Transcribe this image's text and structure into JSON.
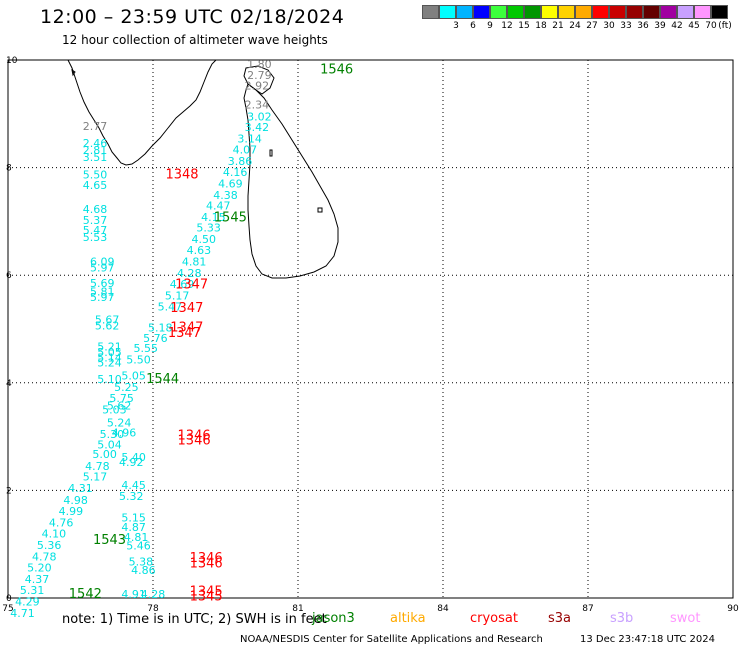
{
  "header": {
    "title": "12:00 – 23:59 UTC 02/18/2024",
    "subtitle": "12 hour collection of altimeter wave heights"
  },
  "colorbar": {
    "unit": "(ft)",
    "bins": [
      {
        "label": "",
        "color": "#808080"
      },
      {
        "label": "3",
        "color": "#00ffff"
      },
      {
        "label": "6",
        "color": "#00b4ff"
      },
      {
        "label": "9",
        "color": "#0000ff"
      },
      {
        "label": "12",
        "color": "#3cff3c"
      },
      {
        "label": "15",
        "color": "#00c800"
      },
      {
        "label": "18",
        "color": "#009600"
      },
      {
        "label": "21",
        "color": "#ffff00"
      },
      {
        "label": "24",
        "color": "#ffd200"
      },
      {
        "label": "27",
        "color": "#ffaa00"
      },
      {
        "label": "30",
        "color": "#ff0000"
      },
      {
        "label": "33",
        "color": "#c80000"
      },
      {
        "label": "36",
        "color": "#960000"
      },
      {
        "label": "39",
        "color": "#640000"
      },
      {
        "label": "42",
        "color": "#a000a0"
      },
      {
        "label": "45",
        "color": "#c8a0ff"
      },
      {
        "label": "70",
        "color": "#ff96ff"
      },
      {
        "label": "",
        "color": "#000000"
      }
    ]
  },
  "map": {
    "lon_range": [
      75,
      90
    ],
    "lat_range": [
      0,
      10
    ],
    "lon_ticks": [
      "75",
      "78",
      "81",
      "84",
      "87",
      "90"
    ],
    "lat_ticks": [
      "0",
      "2",
      "4",
      "6",
      "8",
      "10"
    ],
    "colors": {
      "gray": "#808080",
      "cyan": "#00e0e0",
      "red": "#ff0000",
      "green": "#008000"
    },
    "wave_labels": [
      {
        "lon": 80.2,
        "lat": 9.85,
        "text": "1.80",
        "c": "gray"
      },
      {
        "lon": 80.2,
        "lat": 9.65,
        "text": "2.79",
        "c": "gray"
      },
      {
        "lon": 80.15,
        "lat": 9.45,
        "text": "2.92",
        "c": "gray"
      },
      {
        "lon": 76.8,
        "lat": 8.7,
        "text": "2.77",
        "c": "gray"
      },
      {
        "lon": 80.15,
        "lat": 9.1,
        "text": "2.34",
        "c": "gray"
      },
      {
        "lon": 80.2,
        "lat": 8.88,
        "text": "3.02",
        "c": "cyan"
      },
      {
        "lon": 80.15,
        "lat": 8.68,
        "text": "3.42",
        "c": "cyan"
      },
      {
        "lon": 80.0,
        "lat": 8.47,
        "text": "3.14",
        "c": "cyan"
      },
      {
        "lon": 79.9,
        "lat": 8.26,
        "text": "4.07",
        "c": "cyan"
      },
      {
        "lon": 79.8,
        "lat": 8.05,
        "text": "3.86",
        "c": "cyan"
      },
      {
        "lon": 79.7,
        "lat": 7.84,
        "text": "4.16",
        "c": "cyan"
      },
      {
        "lon": 79.6,
        "lat": 7.63,
        "text": "4.69",
        "c": "cyan"
      },
      {
        "lon": 79.5,
        "lat": 7.42,
        "text": "4.38",
        "c": "cyan"
      },
      {
        "lon": 79.35,
        "lat": 7.22,
        "text": "4.47",
        "c": "cyan"
      },
      {
        "lon": 79.25,
        "lat": 7.01,
        "text": "4.15",
        "c": "cyan"
      },
      {
        "lon": 79.15,
        "lat": 6.81,
        "text": "5.33",
        "c": "cyan"
      },
      {
        "lon": 79.05,
        "lat": 6.6,
        "text": "4.50",
        "c": "cyan"
      },
      {
        "lon": 78.95,
        "lat": 6.39,
        "text": "4.63",
        "c": "cyan"
      },
      {
        "lon": 78.85,
        "lat": 6.18,
        "text": "4.81",
        "c": "cyan"
      },
      {
        "lon": 78.75,
        "lat": 5.97,
        "text": "4.28",
        "c": "cyan"
      },
      {
        "lon": 78.6,
        "lat": 5.76,
        "text": "4.69",
        "c": "cyan"
      },
      {
        "lon": 78.5,
        "lat": 5.55,
        "text": "5.17",
        "c": "cyan"
      },
      {
        "lon": 78.35,
        "lat": 5.34,
        "text": "5.47",
        "c": "cyan"
      },
      {
        "lon": 78.15,
        "lat": 4.95,
        "text": "5.18",
        "c": "cyan"
      },
      {
        "lon": 78.05,
        "lat": 4.76,
        "text": "5.76",
        "c": "cyan"
      },
      {
        "lon": 77.85,
        "lat": 4.57,
        "text": "5.55",
        "c": "cyan"
      },
      {
        "lon": 77.7,
        "lat": 4.36,
        "text": "5.50",
        "c": "cyan"
      },
      {
        "lon": 77.6,
        "lat": 4.06,
        "text": "5.05",
        "c": "cyan"
      },
      {
        "lon": 77.45,
        "lat": 3.85,
        "text": "5.25",
        "c": "cyan"
      },
      {
        "lon": 77.35,
        "lat": 3.64,
        "text": "5.75",
        "c": "cyan"
      },
      {
        "lon": 77.2,
        "lat": 3.43,
        "text": "5.03",
        "c": "cyan"
      },
      {
        "lon": 77.3,
        "lat": 3.19,
        "text": "5.24",
        "c": "cyan"
      },
      {
        "lon": 77.4,
        "lat": 3.0,
        "text": "4.96",
        "c": "cyan"
      },
      {
        "lon": 77.6,
        "lat": 2.55,
        "text": "5.40",
        "c": "cyan"
      },
      {
        "lon": 77.55,
        "lat": 2.45,
        "text": "4.92",
        "c": "cyan"
      },
      {
        "lon": 77.6,
        "lat": 2.03,
        "text": "4.45",
        "c": "cyan"
      },
      {
        "lon": 77.55,
        "lat": 1.82,
        "text": "5.32",
        "c": "cyan"
      },
      {
        "lon": 77.6,
        "lat": 1.42,
        "text": "5.15",
        "c": "cyan"
      },
      {
        "lon": 77.6,
        "lat": 1.25,
        "text": "4.87",
        "c": "cyan"
      },
      {
        "lon": 77.65,
        "lat": 1.06,
        "text": "4.81",
        "c": "cyan"
      },
      {
        "lon": 77.7,
        "lat": 0.9,
        "text": "5.46",
        "c": "cyan"
      },
      {
        "lon": 77.75,
        "lat": 0.6,
        "text": "5.38",
        "c": "cyan"
      },
      {
        "lon": 77.8,
        "lat": 0.45,
        "text": "4.86",
        "c": "cyan"
      },
      {
        "lon": 77.6,
        "lat": 0.0,
        "text": "4.91",
        "c": "cyan"
      },
      {
        "lon": 78.0,
        "lat": 0.0,
        "text": "4.28",
        "c": "cyan"
      },
      {
        "lon": 76.8,
        "lat": 8.38,
        "text": "2.46",
        "c": "cyan"
      },
      {
        "lon": 76.8,
        "lat": 8.25,
        "text": "2.81",
        "c": "cyan"
      },
      {
        "lon": 76.8,
        "lat": 8.12,
        "text": "3.51",
        "c": "cyan"
      },
      {
        "lon": 76.8,
        "lat": 7.8,
        "text": "5.50",
        "c": "cyan"
      },
      {
        "lon": 76.8,
        "lat": 7.6,
        "text": "4.65",
        "c": "cyan"
      },
      {
        "lon": 76.8,
        "lat": 7.16,
        "text": "4.68",
        "c": "cyan"
      },
      {
        "lon": 76.8,
        "lat": 6.95,
        "text": "5.37",
        "c": "cyan"
      },
      {
        "lon": 76.8,
        "lat": 6.77,
        "text": "5.47",
        "c": "cyan"
      },
      {
        "lon": 76.8,
        "lat": 6.64,
        "text": "5.53",
        "c": "cyan"
      },
      {
        "lon": 76.95,
        "lat": 6.18,
        "text": "6.09",
        "c": "cyan"
      },
      {
        "lon": 76.95,
        "lat": 6.07,
        "text": "5.97",
        "c": "cyan"
      },
      {
        "lon": 76.95,
        "lat": 5.78,
        "text": "5.69",
        "c": "cyan"
      },
      {
        "lon": 76.95,
        "lat": 5.62,
        "text": "5.81",
        "c": "cyan"
      },
      {
        "lon": 76.95,
        "lat": 5.52,
        "text": "5.97",
        "c": "cyan"
      },
      {
        "lon": 77.05,
        "lat": 5.1,
        "text": "5.67",
        "c": "cyan"
      },
      {
        "lon": 77.05,
        "lat": 4.99,
        "text": "5.62",
        "c": "cyan"
      },
      {
        "lon": 77.1,
        "lat": 4.6,
        "text": "5.21",
        "c": "cyan"
      },
      {
        "lon": 77.1,
        "lat": 4.5,
        "text": "5.05",
        "c": "cyan"
      },
      {
        "lon": 77.1,
        "lat": 4.4,
        "text": "5.14",
        "c": "cyan"
      },
      {
        "lon": 77.1,
        "lat": 4.3,
        "text": "5.24",
        "c": "cyan"
      },
      {
        "lon": 77.1,
        "lat": 4.0,
        "text": "5.10",
        "c": "cyan"
      },
      {
        "lon": 77.3,
        "lat": 3.5,
        "text": "5.62",
        "c": "cyan"
      },
      {
        "lon": 77.15,
        "lat": 2.97,
        "text": "5.30",
        "c": "cyan"
      },
      {
        "lon": 77.1,
        "lat": 2.78,
        "text": "5.04",
        "c": "cyan"
      },
      {
        "lon": 77.0,
        "lat": 2.6,
        "text": "5.00",
        "c": "cyan"
      },
      {
        "lon": 76.85,
        "lat": 2.38,
        "text": "4.78",
        "c": "cyan"
      },
      {
        "lon": 76.8,
        "lat": 2.18,
        "text": "5.17",
        "c": "cyan"
      },
      {
        "lon": 76.5,
        "lat": 1.97,
        "text": "4.31",
        "c": "cyan"
      },
      {
        "lon": 76.4,
        "lat": 1.75,
        "text": "4.98",
        "c": "cyan"
      },
      {
        "lon": 76.3,
        "lat": 1.54,
        "text": "4.99",
        "c": "cyan"
      },
      {
        "lon": 76.1,
        "lat": 1.33,
        "text": "4.76",
        "c": "cyan"
      },
      {
        "lon": 75.95,
        "lat": 1.12,
        "text": "4.10",
        "c": "cyan"
      },
      {
        "lon": 75.85,
        "lat": 0.91,
        "text": "5.36",
        "c": "cyan"
      },
      {
        "lon": 75.75,
        "lat": 0.7,
        "text": "4.78",
        "c": "cyan"
      },
      {
        "lon": 75.65,
        "lat": 0.49,
        "text": "5.20",
        "c": "cyan"
      },
      {
        "lon": 75.6,
        "lat": 0.28,
        "text": "4.37",
        "c": "cyan"
      },
      {
        "lon": 75.5,
        "lat": 0.07,
        "text": "5.31",
        "c": "cyan"
      },
      {
        "lon": 75.4,
        "lat": -0.14,
        "text": "4.29",
        "c": "cyan"
      },
      {
        "lon": 75.3,
        "lat": -0.35,
        "text": "4.71",
        "c": "cyan"
      }
    ],
    "time_labels": [
      {
        "lon": 81.8,
        "lat": 9.75,
        "text": "1546",
        "c": "green"
      },
      {
        "lon": 79.6,
        "lat": 7.0,
        "text": "1545",
        "c": "green"
      },
      {
        "lon": 78.2,
        "lat": 4.0,
        "text": "1544",
        "c": "green"
      },
      {
        "lon": 77.1,
        "lat": 1.0,
        "text": "1543",
        "c": "green"
      },
      {
        "lon": 76.6,
        "lat": 0.0,
        "text": "1542",
        "c": "green"
      },
      {
        "lon": 78.6,
        "lat": 7.8,
        "text": "1348",
        "c": "red"
      },
      {
        "lon": 78.8,
        "lat": 5.75,
        "text": "1347",
        "c": "red"
      },
      {
        "lon": 78.7,
        "lat": 5.32,
        "text": "1347",
        "c": "red"
      },
      {
        "lon": 78.7,
        "lat": 4.95,
        "text": "1347",
        "c": "red"
      },
      {
        "lon": 78.65,
        "lat": 4.85,
        "text": "1347",
        "c": "red"
      },
      {
        "lon": 78.85,
        "lat": 2.95,
        "text": "1346",
        "c": "red"
      },
      {
        "lon": 78.85,
        "lat": 2.85,
        "text": "1346",
        "c": "red"
      },
      {
        "lon": 79.1,
        "lat": 0.67,
        "text": "1346",
        "c": "red"
      },
      {
        "lon": 79.1,
        "lat": 0.57,
        "text": "1346",
        "c": "red"
      },
      {
        "lon": 79.1,
        "lat": 0.05,
        "text": "1345",
        "c": "red"
      },
      {
        "lon": 79.1,
        "lat": -0.05,
        "text": "1345",
        "c": "red"
      }
    ]
  },
  "note": "note: 1) Time is in UTC; 2) SWH is in feet",
  "satellites": [
    {
      "name": "jason3",
      "color": "#008000"
    },
    {
      "name": "altika",
      "color": "#ffaa00"
    },
    {
      "name": "cryosat",
      "color": "#ff0000"
    },
    {
      "name": "s3a",
      "color": "#960000"
    },
    {
      "name": "s3b",
      "color": "#c8a0ff"
    },
    {
      "name": "swot",
      "color": "#ff96ff"
    }
  ],
  "footer": {
    "org": "NOAA/NESDIS Center for Satellite Applications and Research",
    "generated": "13 Dec 23:47:18 UTC 2024"
  }
}
